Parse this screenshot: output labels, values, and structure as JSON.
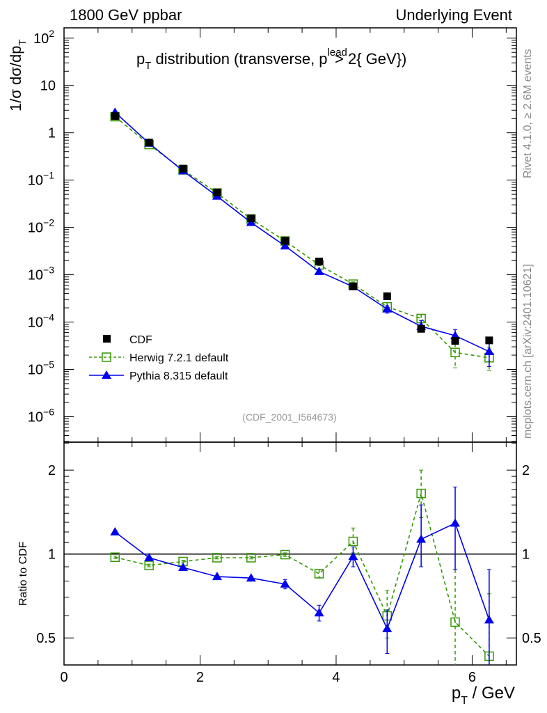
{
  "header": {
    "left": "1800 GeV ppbar",
    "right": "Underlying Event",
    "side_top": "Rivet 4.1.0, ≥ 2.6M events",
    "side_bottom": "mcplots.cern.ch [arXiv:2401.10621]",
    "watermark": "(CDF_2001_I564673)"
  },
  "chart_data": [
    {
      "type": "scatter",
      "title": "p_T distribution (transverse, p_T^lead > 2{ GeV})",
      "title_parts": {
        "p": "p",
        "sub": "T",
        "mid": " distribution (transverse, p",
        "sup": "lead",
        "end": " > 2{ GeV})"
      },
      "ylabel": "1/σ  dσ/dp_T",
      "ylabel_parts": {
        "main": "1/σ  dσ/dp",
        "sub": "T"
      },
      "yscale": "log",
      "ylim": [
        2.9e-07,
        165
      ],
      "xlim": [
        0,
        6.65
      ],
      "ytick_labels": [
        {
          "v": 100,
          "base": "10",
          "exp": "2"
        },
        {
          "v": 10,
          "base": "10",
          "exp": ""
        },
        {
          "v": 1,
          "base": "1",
          "exp": ""
        },
        {
          "v": 0.1,
          "base": "10",
          "exp": "−1"
        },
        {
          "v": 0.01,
          "base": "10",
          "exp": "−2"
        },
        {
          "v": 0.001,
          "base": "10",
          "exp": "−3"
        },
        {
          "v": 0.0001,
          "base": "10",
          "exp": "−4"
        },
        {
          "v": 1e-05,
          "base": "10",
          "exp": "−5"
        },
        {
          "v": 1e-06,
          "base": "10",
          "exp": "−6"
        }
      ],
      "x": [
        0.75,
        1.25,
        1.75,
        2.25,
        2.75,
        3.25,
        3.75,
        4.25,
        4.75,
        5.25,
        5.75,
        6.25
      ],
      "data": {
        "name": "CDF",
        "values": [
          2.25,
          0.62,
          0.175,
          0.055,
          0.0155,
          0.0052,
          0.0019,
          0.00057,
          0.00035,
          7.2e-05,
          4e-05,
          4.1e-05
        ]
      },
      "legend": {
        "placement": "bottom-left",
        "entries": [
          "CDF",
          "Herwig 7.2.1 default",
          "Pythia 8.315 default"
        ]
      }
    },
    {
      "type": "line",
      "ylabel": "Ratio to CDF",
      "xlabel": "p_T / GeV",
      "xlabel_parts": {
        "p": "p",
        "sub": "T",
        "end": " / GeV"
      },
      "yscale": "log",
      "ylim": [
        0.4,
        2.52
      ],
      "xlim": [
        0,
        6.65
      ],
      "xtick_labels": [
        "0",
        "2",
        "4",
        "6"
      ],
      "ytick_labels": [
        "0.5",
        "1",
        "2"
      ],
      "x": [
        0.75,
        1.25,
        1.75,
        2.25,
        2.75,
        3.25,
        3.75,
        4.25,
        4.75,
        5.25,
        5.75,
        6.25
      ],
      "series": [
        {
          "name": "Herwig 7.2.1 default",
          "color": "#339900",
          "style": "dashed",
          "marker": "open-square",
          "values": [
            0.974,
            0.91,
            0.94,
            0.97,
            0.97,
            0.995,
            0.85,
            1.11,
            0.6,
            1.65,
            0.57,
            0.43
          ],
          "err_lo": [
            0.01,
            0.01,
            0.01,
            0.01,
            0.01,
            0.015,
            0.03,
            0.1,
            0.1,
            0.3,
            0.3,
            0.2
          ],
          "err_hi": [
            0.01,
            0.01,
            0.01,
            0.01,
            0.01,
            0.015,
            0.03,
            0.13,
            0.14,
            0.35,
            0.31,
            0.29
          ]
        },
        {
          "name": "Pythia 8.315 default",
          "color": "#0000ee",
          "style": "solid",
          "marker": "filled-triangle",
          "values": [
            1.2,
            0.97,
            0.895,
            0.83,
            0.82,
            0.78,
            0.615,
            0.98,
            0.54,
            1.13,
            1.29,
            0.58
          ],
          "err_lo": [
            0.01,
            0.01,
            0.01,
            0.01,
            0.01,
            0.03,
            0.04,
            0.08,
            0.1,
            0.23,
            0.41,
            0.3
          ],
          "err_hi": [
            0.01,
            0.01,
            0.01,
            0.01,
            0.01,
            0.03,
            0.04,
            0.08,
            0.09,
            0.37,
            0.45,
            0.3
          ]
        }
      ]
    }
  ]
}
